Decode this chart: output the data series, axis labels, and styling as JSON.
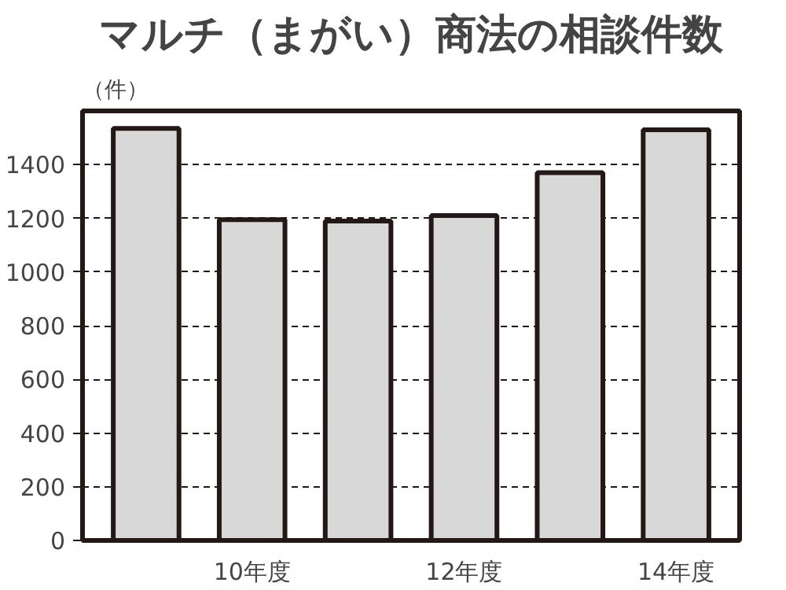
{
  "chart_data": {
    "type": "bar",
    "title": "マルチ（まがい）商法の相談件数",
    "ylabel": "（件）",
    "categories": [
      null,
      "10年度",
      null,
      "12年度",
      null,
      "14年度"
    ],
    "values": [
      1535,
      1195,
      1190,
      1210,
      1370,
      1530
    ],
    "color": "#d8d8d8",
    "ylim": [
      0,
      1600
    ],
    "yticks": [
      0,
      200,
      400,
      600,
      800,
      1000,
      1200,
      1400
    ],
    "grid": "y"
  }
}
